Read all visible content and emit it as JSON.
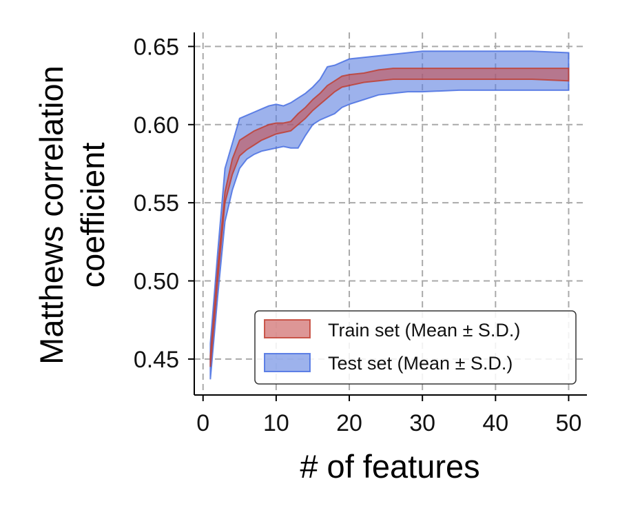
{
  "chart_data": {
    "type": "area",
    "x_axis": {
      "label": "# of features",
      "range": [
        -1.2,
        52.5
      ],
      "ticks": [
        0,
        10,
        20,
        30,
        40,
        50
      ],
      "tick_labels": [
        "0",
        "10",
        "20",
        "30",
        "40",
        "50"
      ]
    },
    "y_axis": {
      "label_lines": [
        "Matthews correlation",
        "coefficient"
      ],
      "range": [
        0.427,
        0.659
      ],
      "ticks": [
        0.45,
        0.5,
        0.55,
        0.6,
        0.65
      ],
      "tick_labels": [
        "0.45",
        "0.50",
        "0.55",
        "0.60",
        "0.65"
      ]
    },
    "grid": true,
    "legend_position": "lower-right",
    "series": [
      {
        "name": "Train set (Mean ± S.D.)",
        "color": "#c0392b",
        "fill_color": "#c65050",
        "fill_opacity": 0.6,
        "x": [
          1,
          2,
          3,
          4,
          5,
          6,
          7,
          8,
          9,
          10,
          11,
          12,
          13,
          14,
          15,
          16,
          17,
          18,
          19,
          20,
          22,
          24,
          26,
          28,
          30,
          35,
          40,
          45,
          50
        ],
        "upper": [
          0.452,
          0.508,
          0.557,
          0.578,
          0.59,
          0.593,
          0.596,
          0.598,
          0.6,
          0.601,
          0.601,
          0.602,
          0.607,
          0.611,
          0.616,
          0.62,
          0.625,
          0.628,
          0.631,
          0.632,
          0.633,
          0.635,
          0.636,
          0.636,
          0.636,
          0.636,
          0.636,
          0.636,
          0.636
        ],
        "lower": [
          0.445,
          0.5,
          0.55,
          0.568,
          0.58,
          0.584,
          0.587,
          0.59,
          0.592,
          0.594,
          0.595,
          0.596,
          0.6,
          0.604,
          0.609,
          0.613,
          0.617,
          0.621,
          0.624,
          0.625,
          0.627,
          0.628,
          0.629,
          0.629,
          0.629,
          0.629,
          0.629,
          0.629,
          0.628
        ]
      },
      {
        "name": "Test set (Mean ± S.D.)",
        "color": "#4169e1",
        "fill_color": "#5b7fe0",
        "fill_opacity": 0.6,
        "x": [
          1,
          2,
          3,
          4,
          5,
          6,
          7,
          8,
          9,
          10,
          11,
          12,
          13,
          14,
          15,
          16,
          17,
          18,
          19,
          20,
          22,
          24,
          26,
          28,
          30,
          35,
          40,
          45,
          50
        ],
        "upper": [
          0.46,
          0.518,
          0.572,
          0.588,
          0.604,
          0.606,
          0.608,
          0.61,
          0.612,
          0.613,
          0.612,
          0.614,
          0.617,
          0.62,
          0.624,
          0.629,
          0.637,
          0.638,
          0.64,
          0.642,
          0.643,
          0.644,
          0.645,
          0.646,
          0.647,
          0.647,
          0.647,
          0.647,
          0.646
        ],
        "lower": [
          0.437,
          0.49,
          0.538,
          0.558,
          0.572,
          0.578,
          0.581,
          0.583,
          0.584,
          0.585,
          0.586,
          0.585,
          0.585,
          0.593,
          0.6,
          0.603,
          0.605,
          0.607,
          0.611,
          0.613,
          0.616,
          0.619,
          0.62,
          0.621,
          0.621,
          0.622,
          0.622,
          0.622,
          0.622
        ]
      }
    ]
  }
}
